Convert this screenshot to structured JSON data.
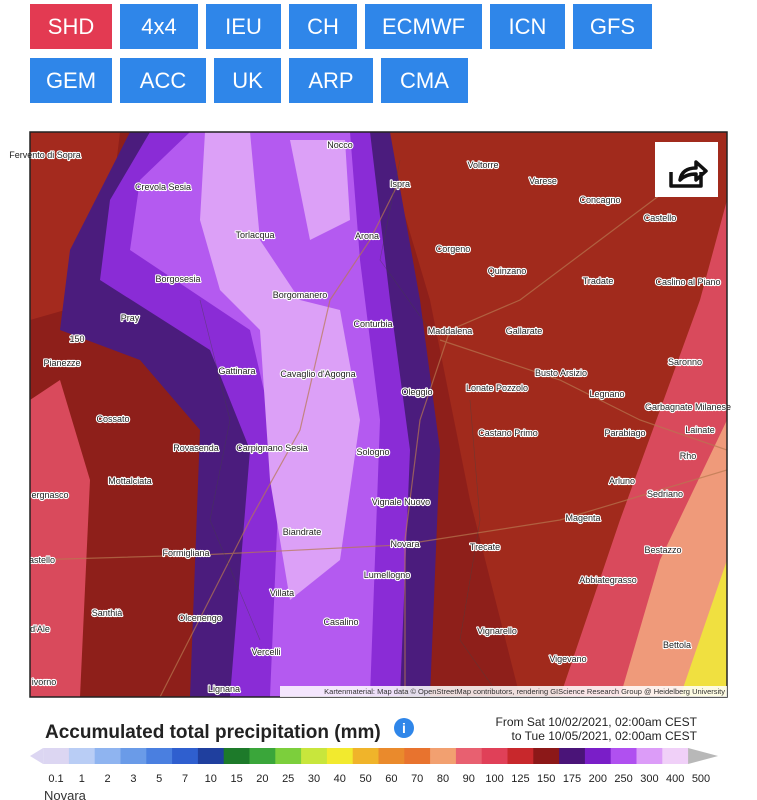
{
  "models": {
    "row1": [
      "SHD",
      "4x4",
      "IEU",
      "CH",
      "ECMWF",
      "ICN",
      "GFS"
    ],
    "row2": [
      "GEM",
      "ACC",
      "UK",
      "ARP",
      "CMA"
    ],
    "active": "SHD"
  },
  "map": {
    "places": [
      "Fervento di Sopra",
      "Nocco",
      "Voltorre",
      "Varese",
      "Ispra",
      "Crevola Sesia",
      "Concagno",
      "Castello",
      "Torlacqua",
      "Arona",
      "Corgeno",
      "Quinzano",
      "Tradate",
      "Caslino al Piano",
      "Borgosesia",
      "Borgomanero",
      "Pray",
      "Conturbia",
      "Maddalena",
      "Gallarate",
      "Pianezze",
      "Gattinara",
      "Cavaglio d'Agogna",
      "Busto Arsizio",
      "Saronno",
      "Lonate Pozzolo",
      "Legnano",
      "Oleggio",
      "Garbagnate Milanese",
      "Cossato",
      "Castano Primo",
      "Parabiago",
      "Lainate",
      "Rovasenda",
      "Carpignano Sesia",
      "Sologno",
      "Rho",
      "Mottalciata",
      "Arluno",
      "Sedriano",
      "Vignale Nuovo",
      "Magenta",
      "Biandrate",
      "Novara",
      "Trecate",
      "Bestazzo",
      "Formigliana",
      "Abbiategrasso",
      "Lumellogno",
      "Santhià",
      "Villata",
      "Olcenengo",
      "Casalino",
      "Vignarello",
      "Bettola",
      "Vercelli",
      "Vigevano",
      "Lignana",
      "ergnasco",
      "astello",
      "d'Ale",
      "ivorno",
      "150"
    ],
    "attribution": "Kartenmaterial: Map data © OpenStreetMap contributors, rendering GIScience Research Group @ Heidelberg University"
  },
  "legend": {
    "title": "Accumulated total precipitation (mm)",
    "from": "From Sat 10/02/2021, 02:00am CEST",
    "to": "to Tue 10/05/2021, 02:00am CEST",
    "steps": [
      0.1,
      1,
      2,
      3,
      5,
      7,
      10,
      15,
      20,
      25,
      30,
      40,
      50,
      60,
      70,
      80,
      90,
      100,
      125,
      150,
      175,
      200,
      250,
      300,
      400,
      500
    ],
    "colors": [
      "#dcd6f2",
      "#b9cdf5",
      "#8fb4f0",
      "#6a9be8",
      "#4a7fe0",
      "#2f5fcf",
      "#1f3f9e",
      "#1d7a2a",
      "#3aa63a",
      "#7ccf3c",
      "#c8e63c",
      "#f2ea2e",
      "#f0b42a",
      "#ea8a2c",
      "#e8732e",
      "#f2a070",
      "#e86070",
      "#e04058",
      "#c8282c",
      "#8c1818",
      "#4a1478",
      "#7a1ec8",
      "#b050f0",
      "#dc9cf8",
      "#f0d0f8",
      "#b8b8b8"
    ]
  },
  "footer": "Novara"
}
